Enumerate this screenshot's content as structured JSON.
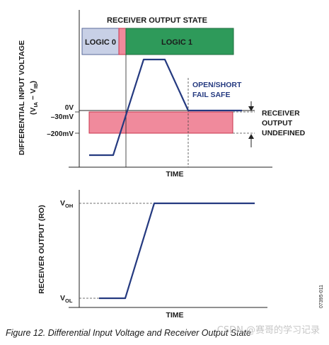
{
  "top_plot": {
    "title": "RECEIVER OUTPUT STATE",
    "state_logic0": "LOGIC 0",
    "state_logic1": "LOGIC 1",
    "y_axis_title_line1": "DIFFERENTIAL INPUT VOLTAGE",
    "y_axis_title_line2_prefix": "(V",
    "y_axis_title_sub1": "IA",
    "y_axis_title_mid": " − V",
    "y_axis_title_sub2": "IB",
    "y_axis_title_suffix": ")",
    "tick_0v": "0V",
    "tick_30mv": "–30mV",
    "tick_200mv": "–200mV",
    "fail_safe_line1": "OPEN/SHORT",
    "fail_safe_line2": "FAIL SAFE",
    "undefined_line1": "RECEIVER",
    "undefined_line2": "OUTPUT",
    "undefined_line3": "UNDEFINED",
    "x_axis_label": "TIME"
  },
  "bottom_plot": {
    "y_axis_title": "RECEIVER OUTPUT (RO)",
    "voh_main": "V",
    "voh_sub": "OH",
    "vol_main": "V",
    "vol_sub": "OL",
    "x_axis_label": "TIME"
  },
  "side_code": "07395-011",
  "caption": "Figure 12. Differential Input Voltage and Receiver Output State",
  "watermark": "CSDN @赛哥的学习记录",
  "colors": {
    "trace": "#253a80",
    "logic0_fill": "#c8d0e6",
    "logic1_fill": "#2e9a5a",
    "undefined_fill": "#f08a9c",
    "undefined_stroke": "#c8344c",
    "fail_safe_text": "#253a80"
  }
}
